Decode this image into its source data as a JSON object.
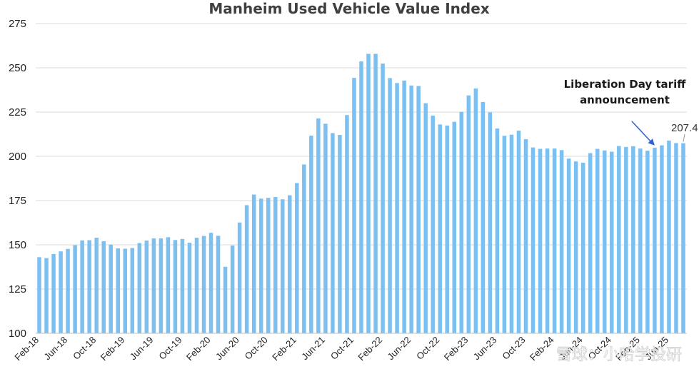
{
  "chart_data": {
    "type": "bar",
    "title": "Manheim Used Vehicle Value Index",
    "xlabel": "",
    "ylabel": "",
    "ylim": [
      100,
      275
    ],
    "yticks": [
      100,
      125,
      150,
      175,
      200,
      225,
      250,
      275
    ],
    "grid": "horizontal",
    "bar_color": "#7cc0f2",
    "x_tick_labels": [
      "Feb-18",
      "Jun-18",
      "Oct-18",
      "Feb-19",
      "Jun-19",
      "Oct-19",
      "Feb-20",
      "Jun-20",
      "Oct-20",
      "Feb-21",
      "Jun-21",
      "Oct-21",
      "Feb-22",
      "Jun-22",
      "Oct-22",
      "Feb-23",
      "Jun-23",
      "Oct-23",
      "Feb-24",
      "Jun-24",
      "Oct-24",
      "Feb-25",
      "Jun-25"
    ],
    "x_tick_every_n_bars": 4,
    "values": [
      143.0,
      142.5,
      144.8,
      146.3,
      147.7,
      149.8,
      152.5,
      152.6,
      154.0,
      152.0,
      150.2,
      148.0,
      147.8,
      148.2,
      151.0,
      152.4,
      153.6,
      153.6,
      154.3,
      152.7,
      153.3,
      151.2,
      154.0,
      155.0,
      156.8,
      155.1,
      137.6,
      149.6,
      162.6,
      172.4,
      178.4,
      176.1,
      176.5,
      177.0,
      175.7,
      178.0,
      184.9,
      195.4,
      211.7,
      221.4,
      218.4,
      213.1,
      212.1,
      223.3,
      244.3,
      253.6,
      257.9,
      257.9,
      252.4,
      244.2,
      241.4,
      242.8,
      240.0,
      239.7,
      230.0,
      223.0,
      218.0,
      217.4,
      219.5,
      225.1,
      234.4,
      238.3,
      230.7,
      224.8,
      215.7,
      211.6,
      212.2,
      214.5,
      209.7,
      205.0,
      204.2,
      204.4,
      204.4,
      203.5,
      198.7,
      197.1,
      196.4,
      201.8,
      204.2,
      203.3,
      202.6,
      205.8,
      205.3,
      205.7,
      204.4,
      203.2,
      204.9,
      206.2,
      208.9,
      207.5,
      207.4
    ],
    "annotations": [
      {
        "text_lines": [
          "Liberation Day tariff",
          "announcement"
        ],
        "points_to_bar_index": 86
      },
      {
        "text": "207.4",
        "bar_index": 90
      }
    ]
  },
  "watermark": "雪球：小哈学投研"
}
